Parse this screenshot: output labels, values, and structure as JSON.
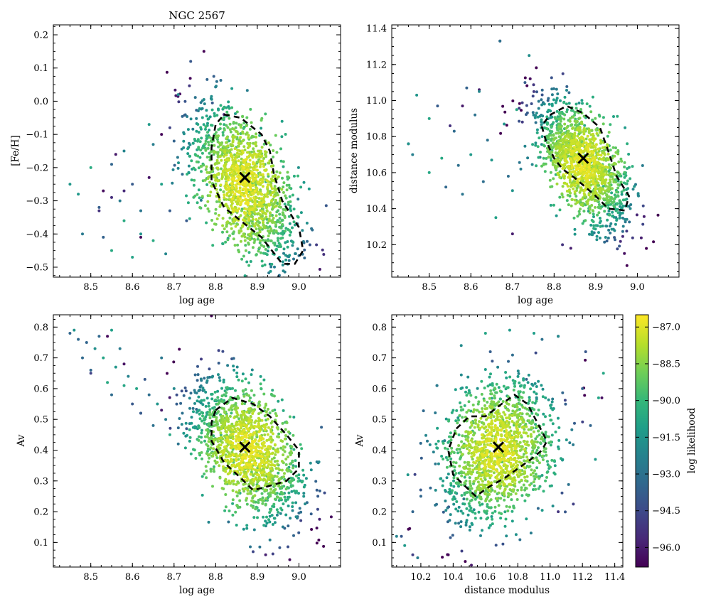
{
  "chart_data": [
    {
      "type": "scatter",
      "id": "p1",
      "title": "NGC 2567",
      "xlabel": "log age",
      "ylabel": "[Fe/H]",
      "xlim": [
        8.41,
        9.1
      ],
      "ylim": [
        -0.53,
        0.23
      ],
      "xticks": [
        8.5,
        8.6,
        8.7,
        8.8,
        8.9,
        9.0
      ],
      "xtick_labels": [
        "8.5",
        "8.6",
        "8.7",
        "8.8",
        "8.9",
        "9.0"
      ],
      "yticks": [
        -0.5,
        -0.4,
        -0.3,
        -0.2,
        -0.1,
        0.0,
        0.1,
        0.2
      ],
      "ytick_labels": [
        "−0.5",
        "−0.4",
        "−0.3",
        "−0.2",
        "−0.1",
        "0.0",
        "0.1",
        "0.2"
      ],
      "best_fit": {
        "x": 8.87,
        "y": -0.23
      },
      "contour": [
        [
          8.82,
          -0.04
        ],
        [
          8.86,
          -0.05
        ],
        [
          8.91,
          -0.1
        ],
        [
          8.93,
          -0.15
        ],
        [
          8.94,
          -0.22
        ],
        [
          8.96,
          -0.3
        ],
        [
          9.0,
          -0.38
        ],
        [
          9.01,
          -0.45
        ],
        [
          8.99,
          -0.49
        ],
        [
          8.96,
          -0.49
        ],
        [
          8.91,
          -0.41
        ],
        [
          8.86,
          -0.36
        ],
        [
          8.82,
          -0.32
        ],
        [
          8.79,
          -0.24
        ],
        [
          8.79,
          -0.14
        ],
        [
          8.8,
          -0.07
        ]
      ],
      "cloud": {
        "n": 1500,
        "cx": 8.87,
        "cy": -0.25,
        "sx": 0.065,
        "sy": 0.12,
        "rho": -0.55
      },
      "tail": [
        [
          8.45,
          -0.25
        ],
        [
          8.47,
          -0.28
        ],
        [
          8.48,
          -0.4
        ],
        [
          8.5,
          -0.2
        ],
        [
          8.52,
          -0.32
        ],
        [
          8.53,
          -0.41
        ],
        [
          8.55,
          -0.45
        ],
        [
          8.55,
          -0.19
        ],
        [
          8.57,
          -0.3
        ],
        [
          8.58,
          -0.36
        ],
        [
          8.58,
          -0.15
        ],
        [
          8.6,
          -0.25
        ],
        [
          8.6,
          -0.47
        ],
        [
          8.62,
          -0.4
        ],
        [
          8.62,
          -0.33
        ],
        [
          8.64,
          -0.07
        ],
        [
          8.65,
          -0.13
        ],
        [
          8.65,
          -0.42
        ],
        [
          8.67,
          -0.25
        ],
        [
          8.68,
          -0.46
        ],
        [
          8.69,
          -0.33
        ],
        [
          8.7,
          -0.12
        ],
        [
          8.71,
          0.02
        ],
        [
          8.72,
          -0.22
        ],
        [
          8.73,
          -0.36
        ],
        [
          8.74,
          0.12
        ]
      ],
      "special_points": [
        [
          8.67,
          -0.1
        ],
        [
          8.69,
          -0.08
        ],
        [
          8.58,
          -0.27
        ],
        [
          8.56,
          -0.16
        ],
        [
          8.64,
          -0.23
        ],
        [
          8.62,
          -0.41
        ],
        [
          8.82,
          -0.04
        ],
        [
          8.53,
          -0.27
        ],
        [
          8.52,
          -0.33
        ],
        [
          8.55,
          -0.29
        ]
      ]
    },
    {
      "type": "scatter",
      "id": "p2",
      "title": "",
      "xlabel": "log age",
      "ylabel": "distance modulus",
      "xlim": [
        8.41,
        9.1
      ],
      "ylim": [
        10.02,
        11.42
      ],
      "xticks": [
        8.5,
        8.6,
        8.7,
        8.8,
        8.9,
        9.0
      ],
      "xtick_labels": [
        "8.5",
        "8.6",
        "8.7",
        "8.8",
        "8.9",
        "9.0"
      ],
      "yticks": [
        10.2,
        10.4,
        10.6,
        10.8,
        11.0,
        11.2,
        11.4
      ],
      "ytick_labels": [
        "10.2",
        "10.4",
        "10.6",
        "10.8",
        "11.0",
        "11.2",
        "11.4"
      ],
      "best_fit": {
        "x": 8.87,
        "y": 10.68
      },
      "contour": [
        [
          8.79,
          10.92
        ],
        [
          8.83,
          10.97
        ],
        [
          8.87,
          10.93
        ],
        [
          8.91,
          10.85
        ],
        [
          8.93,
          10.72
        ],
        [
          8.95,
          10.58
        ],
        [
          8.98,
          10.47
        ],
        [
          8.97,
          10.39
        ],
        [
          8.93,
          10.4
        ],
        [
          8.9,
          10.47
        ],
        [
          8.85,
          10.57
        ],
        [
          8.82,
          10.62
        ],
        [
          8.8,
          10.68
        ],
        [
          8.78,
          10.78
        ],
        [
          8.77,
          10.86
        ]
      ],
      "cloud": {
        "n": 1500,
        "cx": 8.87,
        "cy": 10.65,
        "sx": 0.055,
        "sy": 0.17,
        "rho": -0.6
      },
      "tail": [
        [
          8.45,
          10.76
        ],
        [
          8.46,
          10.7
        ],
        [
          8.47,
          11.03
        ],
        [
          8.5,
          10.6
        ],
        [
          8.5,
          10.9
        ],
        [
          8.52,
          10.97
        ],
        [
          8.53,
          10.68
        ],
        [
          8.54,
          10.52
        ],
        [
          8.56,
          10.83
        ],
        [
          8.57,
          10.64
        ],
        [
          8.58,
          10.48
        ],
        [
          8.59,
          11.07
        ],
        [
          8.6,
          10.7
        ],
        [
          8.61,
          10.92
        ],
        [
          8.62,
          11.05
        ],
        [
          8.63,
          10.55
        ],
        [
          8.64,
          10.78
        ],
        [
          8.65,
          10.67
        ],
        [
          8.66,
          10.35
        ],
        [
          8.67,
          11.33
        ],
        [
          8.68,
          10.87
        ],
        [
          8.69,
          10.58
        ],
        [
          8.7,
          10.5
        ],
        [
          8.71,
          10.95
        ],
        [
          8.72,
          10.62
        ],
        [
          8.73,
          11.1
        ],
        [
          8.74,
          11.25
        ]
      ],
      "special_points": [
        [
          8.67,
          11.33
        ],
        [
          8.62,
          11.06
        ],
        [
          8.45,
          10.76
        ],
        [
          8.58,
          10.97
        ],
        [
          8.55,
          10.86
        ],
        [
          8.84,
          10.18
        ],
        [
          8.7,
          10.26
        ],
        [
          8.82,
          10.2
        ]
      ]
    },
    {
      "type": "scatter",
      "id": "p3",
      "title": "",
      "xlabel": "log age",
      "ylabel": "Av",
      "xlim": [
        8.41,
        9.1
      ],
      "ylim": [
        0.02,
        0.84
      ],
      "xticks": [
        8.5,
        8.6,
        8.7,
        8.8,
        8.9,
        9.0
      ],
      "xtick_labels": [
        "8.5",
        "8.6",
        "8.7",
        "8.8",
        "8.9",
        "9.0"
      ],
      "yticks": [
        0.1,
        0.2,
        0.3,
        0.4,
        0.5,
        0.6,
        0.7,
        0.8
      ],
      "ytick_labels": [
        "0.1",
        "0.2",
        "0.3",
        "0.4",
        "0.5",
        "0.6",
        "0.7",
        "0.8"
      ],
      "best_fit": {
        "x": 8.87,
        "y": 0.41
      },
      "contour": [
        [
          8.8,
          0.53
        ],
        [
          8.84,
          0.57
        ],
        [
          8.89,
          0.55
        ],
        [
          8.93,
          0.51
        ],
        [
          8.97,
          0.45
        ],
        [
          9.0,
          0.4
        ],
        [
          9.0,
          0.34
        ],
        [
          8.97,
          0.3
        ],
        [
          8.92,
          0.28
        ],
        [
          8.89,
          0.27
        ],
        [
          8.86,
          0.31
        ],
        [
          8.82,
          0.36
        ],
        [
          8.79,
          0.43
        ],
        [
          8.79,
          0.49
        ]
      ],
      "cloud": {
        "n": 1500,
        "cx": 8.88,
        "cy": 0.4,
        "sx": 0.065,
        "sy": 0.11,
        "rho": -0.5
      },
      "tail": [
        [
          8.45,
          0.78
        ],
        [
          8.46,
          0.79
        ],
        [
          8.47,
          0.76
        ],
        [
          8.48,
          0.7
        ],
        [
          8.49,
          0.75
        ],
        [
          8.5,
          0.66
        ],
        [
          8.51,
          0.73
        ],
        [
          8.52,
          0.77
        ],
        [
          8.53,
          0.7
        ],
        [
          8.54,
          0.62
        ],
        [
          8.55,
          0.79
        ],
        [
          8.55,
          0.58
        ],
        [
          8.56,
          0.67
        ],
        [
          8.57,
          0.73
        ],
        [
          8.58,
          0.61
        ],
        [
          8.59,
          0.64
        ],
        [
          8.6,
          0.55
        ],
        [
          8.61,
          0.6
        ],
        [
          8.62,
          0.52
        ],
        [
          8.63,
          0.63
        ],
        [
          8.64,
          0.58
        ],
        [
          8.65,
          0.48
        ],
        [
          8.66,
          0.55
        ],
        [
          8.67,
          0.7
        ],
        [
          8.68,
          0.5
        ],
        [
          8.69,
          0.45
        ],
        [
          8.7,
          0.6
        ],
        [
          8.71,
          0.42
        ],
        [
          8.72,
          0.52
        ],
        [
          8.73,
          0.47
        ]
      ],
      "special_points": [
        [
          8.67,
          0.53
        ],
        [
          8.62,
          0.52
        ],
        [
          8.54,
          0.77
        ],
        [
          8.5,
          0.65
        ],
        [
          8.58,
          0.68
        ],
        [
          8.89,
          0.07
        ],
        [
          8.92,
          0.06
        ]
      ]
    },
    {
      "type": "scatter",
      "id": "p4",
      "title": "",
      "xlabel": "distance modulus",
      "ylabel": "Av",
      "xlim": [
        10.02,
        11.45
      ],
      "ylim": [
        0.02,
        0.84
      ],
      "xticks": [
        10.2,
        10.4,
        10.6,
        10.8,
        11.0,
        11.2,
        11.4
      ],
      "xtick_labels": [
        "10.2",
        "10.4",
        "10.6",
        "10.8",
        "11.0",
        "11.2",
        "11.4"
      ],
      "yticks": [
        0.1,
        0.2,
        0.3,
        0.4,
        0.5,
        0.6,
        0.7,
        0.8
      ],
      "ytick_labels": [
        "0.1",
        "0.2",
        "0.3",
        "0.4",
        "0.5",
        "0.6",
        "0.7",
        "0.8"
      ],
      "best_fit": {
        "x": 10.68,
        "y": 0.41
      },
      "contour": [
        [
          10.42,
          0.47
        ],
        [
          10.5,
          0.51
        ],
        [
          10.6,
          0.51
        ],
        [
          10.7,
          0.55
        ],
        [
          10.78,
          0.58
        ],
        [
          10.86,
          0.55
        ],
        [
          10.91,
          0.5
        ],
        [
          10.98,
          0.43
        ],
        [
          10.95,
          0.4
        ],
        [
          10.88,
          0.37
        ],
        [
          10.8,
          0.34
        ],
        [
          10.72,
          0.31
        ],
        [
          10.62,
          0.28
        ],
        [
          10.54,
          0.25
        ],
        [
          10.48,
          0.28
        ],
        [
          10.4,
          0.32
        ],
        [
          10.37,
          0.4
        ]
      ],
      "cloud": {
        "n": 1500,
        "cx": 10.68,
        "cy": 0.4,
        "sx": 0.17,
        "sy": 0.11,
        "rho": 0.25
      },
      "tail": [
        [
          10.05,
          0.12
        ],
        [
          10.08,
          0.12
        ],
        [
          10.1,
          0.09
        ],
        [
          10.12,
          0.32
        ],
        [
          10.15,
          0.2
        ],
        [
          10.18,
          0.05
        ],
        [
          10.2,
          0.25
        ],
        [
          11.2,
          0.6
        ],
        [
          11.22,
          0.72
        ],
        [
          11.25,
          0.48
        ],
        [
          11.28,
          0.37
        ],
        [
          11.3,
          0.57
        ],
        [
          11.33,
          0.65
        ],
        [
          10.9,
          0.78
        ],
        [
          10.95,
          0.76
        ],
        [
          11.05,
          0.77
        ],
        [
          10.75,
          0.79
        ],
        [
          10.6,
          0.78
        ],
        [
          10.45,
          0.74
        ],
        [
          10.3,
          0.61
        ]
      ],
      "special_points": [
        [
          10.15,
          0.06
        ],
        [
          10.37,
          0.06
        ],
        [
          11.32,
          0.57
        ],
        [
          11.05,
          0.77
        ],
        [
          10.3,
          0.61
        ],
        [
          11.05,
          0.2
        ]
      ]
    }
  ],
  "colorbar": {
    "label": "log likelihood",
    "range": [
      -96.8,
      -86.5
    ],
    "ticks": [
      -87.0,
      -88.5,
      -90.0,
      -91.5,
      -93.0,
      -94.5,
      -96.0
    ],
    "tick_labels": [
      "−87.0",
      "−88.5",
      "−90.0",
      "−91.5",
      "−93.0",
      "−94.5",
      "−96.0"
    ],
    "colormap": [
      "#440154",
      "#482878",
      "#3e4989",
      "#31688e",
      "#26828e",
      "#1f9e89",
      "#35b779",
      "#6ece58",
      "#b5de2b",
      "#fde725"
    ]
  }
}
